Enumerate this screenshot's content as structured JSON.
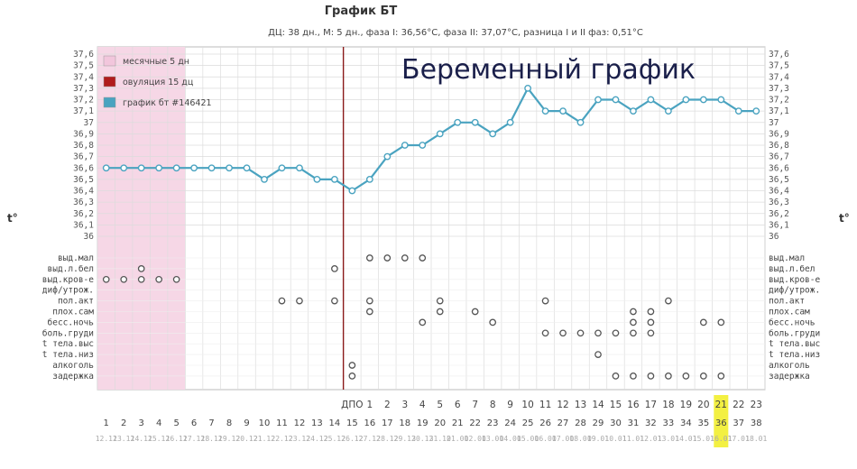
{
  "chart_data": {
    "type": "line",
    "title": "График БТ",
    "subtitle": "ДЦ: 38 дн., М: 5 дн., фаза I: 36,56°С, фаза II: 37,07°С, разница I и II фаз: 0,51°С",
    "overlay_text": "Беременный график",
    "axis_symbol": "t°",
    "y_ticks": [
      "36",
      "36,1",
      "36,2",
      "36,3",
      "36,4",
      "36,5",
      "36,6",
      "36,7",
      "36,8",
      "36,9",
      "37",
      "37,1",
      "37,2",
      "37,3",
      "37,4",
      "37,5",
      "37,6"
    ],
    "y_range": [
      36.0,
      37.6
    ],
    "legend": [
      {
        "label": "месячные 5 дн",
        "color": "#f2c6dc"
      },
      {
        "label": "овуляция 15 дц",
        "color": "#b01c1c"
      },
      {
        "label": "график бт #146421",
        "color": "#4aa3c0"
      }
    ],
    "line_color": "#4aa3c0",
    "menses_color": "#f6d7e6",
    "ovulation_color": "#8b1a1a",
    "highlight_color": "#f2ee2e",
    "cycle_days": [
      "1",
      "2",
      "3",
      "4",
      "5",
      "6",
      "7",
      "8",
      "9",
      "10",
      "11",
      "12",
      "13",
      "14",
      "15",
      "16",
      "17",
      "18",
      "19",
      "20",
      "21",
      "22",
      "23",
      "24",
      "25",
      "26",
      "27",
      "28",
      "29",
      "30",
      "31",
      "32",
      "33",
      "34",
      "35",
      "36",
      "37",
      "38"
    ],
    "dates": [
      "12.12",
      "13.12",
      "14.12",
      "15.12",
      "16.12",
      "17.12",
      "18.12",
      "19.12",
      "20.12",
      "21.12",
      "22.12",
      "23.12",
      "24.12",
      "25.12",
      "26.12",
      "27.12",
      "28.12",
      "29.12",
      "30.12",
      "31.12",
      "01.01",
      "02.01",
      "03.01",
      "04.01",
      "05.01",
      "06.01",
      "07.01",
      "08.01",
      "09.01",
      "10.01",
      "11.01",
      "12.01",
      "13.01",
      "14.01",
      "15.01",
      "16.01",
      "17.01",
      "18.01"
    ],
    "dpo_label": "ДПО",
    "dpo_days": [
      "1",
      "2",
      "3",
      "4",
      "5",
      "6",
      "7",
      "8",
      "9",
      "10",
      "11",
      "12",
      "13",
      "14",
      "15",
      "16",
      "17",
      "18",
      "19",
      "20",
      "21",
      "22",
      "23"
    ],
    "temperatures": [
      36.6,
      36.6,
      36.6,
      36.6,
      36.6,
      36.6,
      36.6,
      36.6,
      36.6,
      36.5,
      36.6,
      36.6,
      36.5,
      36.5,
      36.4,
      36.5,
      36.7,
      36.8,
      36.8,
      36.9,
      37.0,
      37.0,
      36.9,
      37.0,
      37.3,
      37.1,
      37.1,
      37.0,
      37.2,
      37.2,
      37.1,
      37.2,
      37.1,
      37.2,
      37.2,
      37.2,
      37.1,
      37.1
    ],
    "ovulation_day": 15,
    "menses_days": 5,
    "highlight_day": 36,
    "row_labels": [
      "выд.мал",
      "выд.л.бел",
      "выд.кров-е",
      "диф/утрож.",
      "пол.акт",
      "плох.сам",
      "бесс.ночь",
      "боль.груди",
      "t тела.выс",
      "t тела.низ",
      "алкоголь",
      "задержка"
    ],
    "marks": [
      {
        "row": 0,
        "days": [
          16,
          17,
          18,
          19
        ]
      },
      {
        "row": 1,
        "days": [
          3,
          14
        ]
      },
      {
        "row": 2,
        "days": [
          1,
          2,
          3,
          4,
          5
        ]
      },
      {
        "row": 4,
        "days": [
          11,
          12,
          14,
          16,
          20,
          26,
          33
        ]
      },
      {
        "row": 5,
        "days": [
          16,
          20,
          22,
          31,
          32
        ]
      },
      {
        "row": 6,
        "days": [
          19,
          23,
          31,
          32,
          35,
          36
        ]
      },
      {
        "row": 7,
        "days": [
          26,
          27,
          28,
          29,
          30,
          31,
          32
        ]
      },
      {
        "row": 9,
        "days": [
          29
        ]
      },
      {
        "row": 10,
        "days": [
          15
        ]
      },
      {
        "row": 11,
        "days": [
          15,
          30,
          31,
          32,
          33,
          34,
          35,
          36
        ]
      }
    ],
    "grid": true
  }
}
